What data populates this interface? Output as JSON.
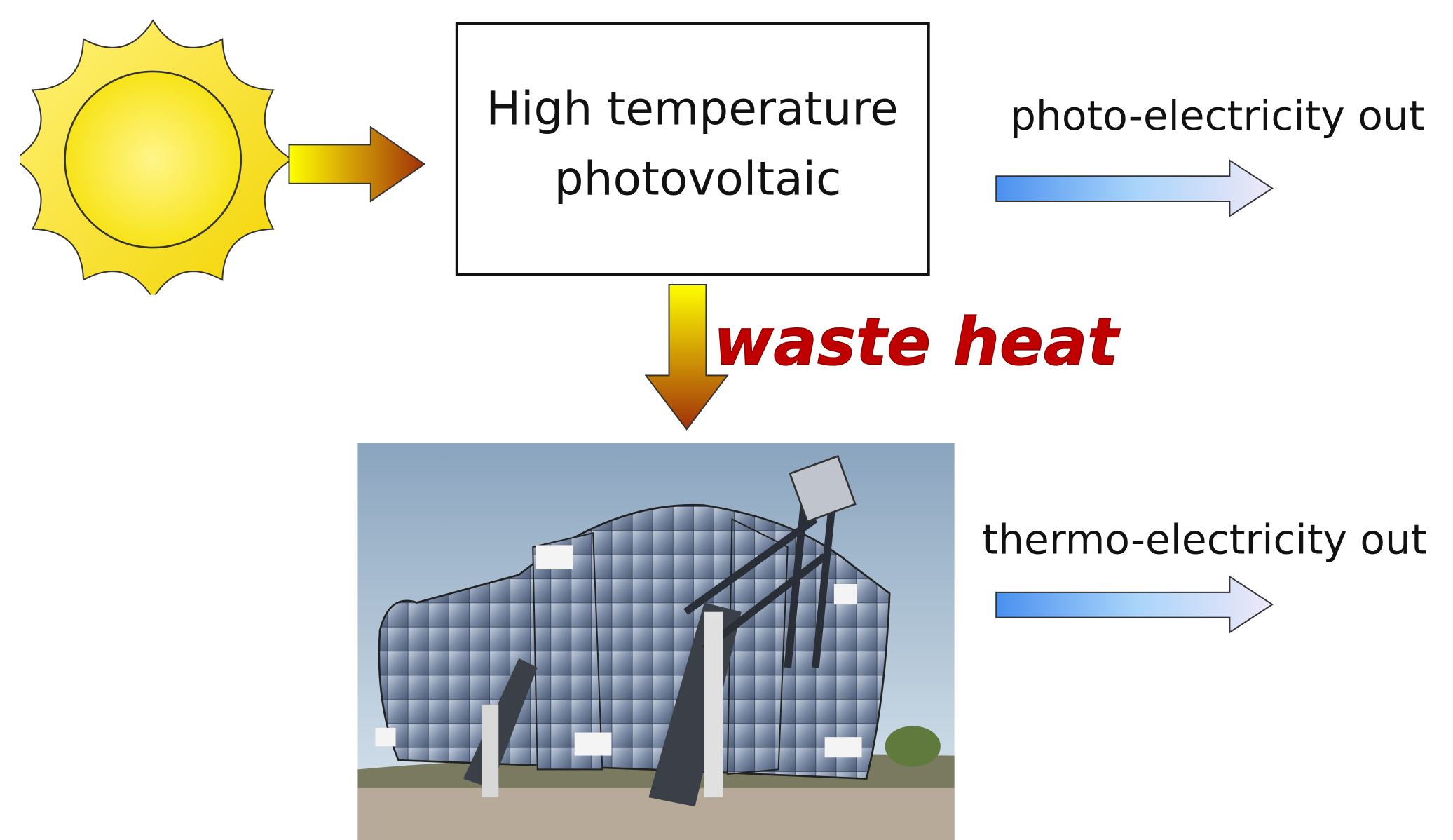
{
  "box": {
    "lines": [
      "High temperature",
      "photovoltaic"
    ]
  },
  "photo_output": "photo-electricity out",
  "waste_label": "waste heat",
  "thermo_output": "thermo-electricity out"
}
